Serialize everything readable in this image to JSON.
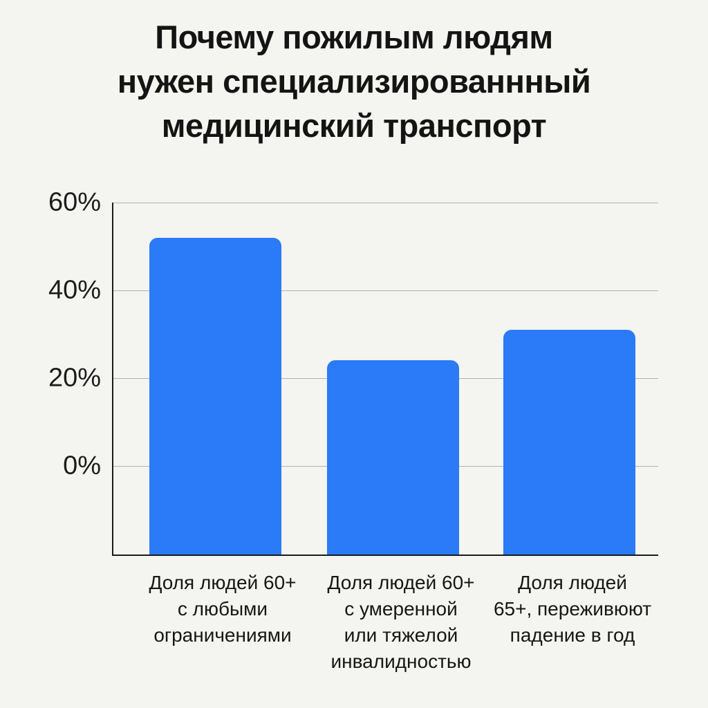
{
  "title": {
    "text": "Почему пожилым людям\nнужен специализированнный\nмедицинский транспорт"
  },
  "chart_data": {
    "type": "bar",
    "title": "Почему пожилым людям нужен специализированнный медицинский транспорт",
    "categories": [
      "Доля людей 60+\nс любыми\nограничениями",
      "Доля людей 60+\nс умеренной\nили тяжелой\nинвалидностью",
      "Доля людей\n65+, переживюют\nпадение в год"
    ],
    "values": [
      52,
      24,
      31
    ],
    "unit": "%",
    "xlabel": "",
    "ylabel": "",
    "yticks": [
      60,
      40,
      20,
      0
    ],
    "ytick_labels": [
      "60%",
      "40%",
      "20%",
      "0%"
    ],
    "ylim": [
      -20,
      60
    ],
    "grid": true,
    "legend": false,
    "baseline_note": "bars are drawn from the x-axis baseline which sits below the 0% gridline",
    "colors": {
      "bar": "#2b7af7",
      "background": "#f4f4f1",
      "gridline": "#b1b1ae",
      "axis": "#1a1a1a",
      "text": "#141414"
    }
  }
}
